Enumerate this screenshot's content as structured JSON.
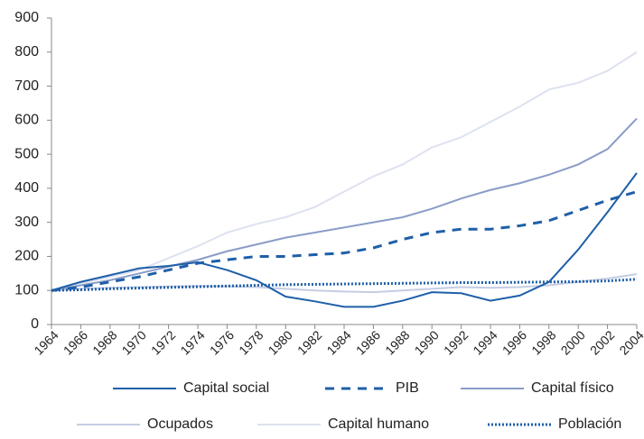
{
  "chart_data": {
    "type": "line",
    "categories": [
      "1964",
      "1966",
      "1968",
      "1970",
      "1972",
      "1974",
      "1976",
      "1978",
      "1980",
      "1982",
      "1984",
      "1986",
      "1988",
      "1990",
      "1992",
      "1994",
      "1996",
      "1998",
      "2000",
      "2002",
      "2004"
    ],
    "ylim": [
      0,
      900
    ],
    "yticks": [
      0,
      100,
      200,
      300,
      400,
      500,
      600,
      700,
      800,
      900
    ],
    "grid": false,
    "series": [
      {
        "name": "Capital social",
        "color": "#1f5fa8",
        "dash": "solid",
        "values": [
          100,
          125,
          145,
          165,
          172,
          183,
          160,
          130,
          82,
          68,
          52,
          52,
          70,
          95,
          92,
          70,
          85,
          125,
          220,
          330,
          445
        ]
      },
      {
        "name": "PIB",
        "color": "#1f5fa8",
        "dash": "dashed",
        "values": [
          100,
          110,
          125,
          140,
          160,
          180,
          190,
          200,
          200,
          205,
          210,
          225,
          250,
          270,
          280,
          280,
          290,
          305,
          335,
          365,
          390
        ]
      },
      {
        "name": "Capital físico",
        "color": "#8a9cc8",
        "dash": "solid",
        "values": [
          100,
          115,
          130,
          150,
          170,
          190,
          215,
          235,
          255,
          270,
          285,
          300,
          315,
          340,
          370,
          395,
          415,
          440,
          470,
          515,
          605
        ]
      },
      {
        "name": "Ocupados",
        "color": "#c5cde3",
        "dash": "solid",
        "values": [
          100,
          105,
          108,
          110,
          112,
          113,
          112,
          110,
          105,
          100,
          97,
          95,
          100,
          105,
          110,
          108,
          110,
          115,
          125,
          135,
          148
        ]
      },
      {
        "name": "Capital humano",
        "color": "#dde2ef",
        "dash": "solid",
        "values": [
          100,
          120,
          140,
          160,
          195,
          230,
          270,
          295,
          315,
          345,
          390,
          435,
          470,
          520,
          550,
          595,
          640,
          690,
          710,
          745,
          800
        ]
      },
      {
        "name": "Población",
        "color": "#1f5fa8",
        "dash": "dotted",
        "values": [
          100,
          102,
          105,
          107,
          109,
          111,
          113,
          115,
          117,
          118,
          119,
          120,
          121,
          122,
          123,
          123,
          124,
          125,
          126,
          128,
          133
        ]
      }
    ]
  }
}
